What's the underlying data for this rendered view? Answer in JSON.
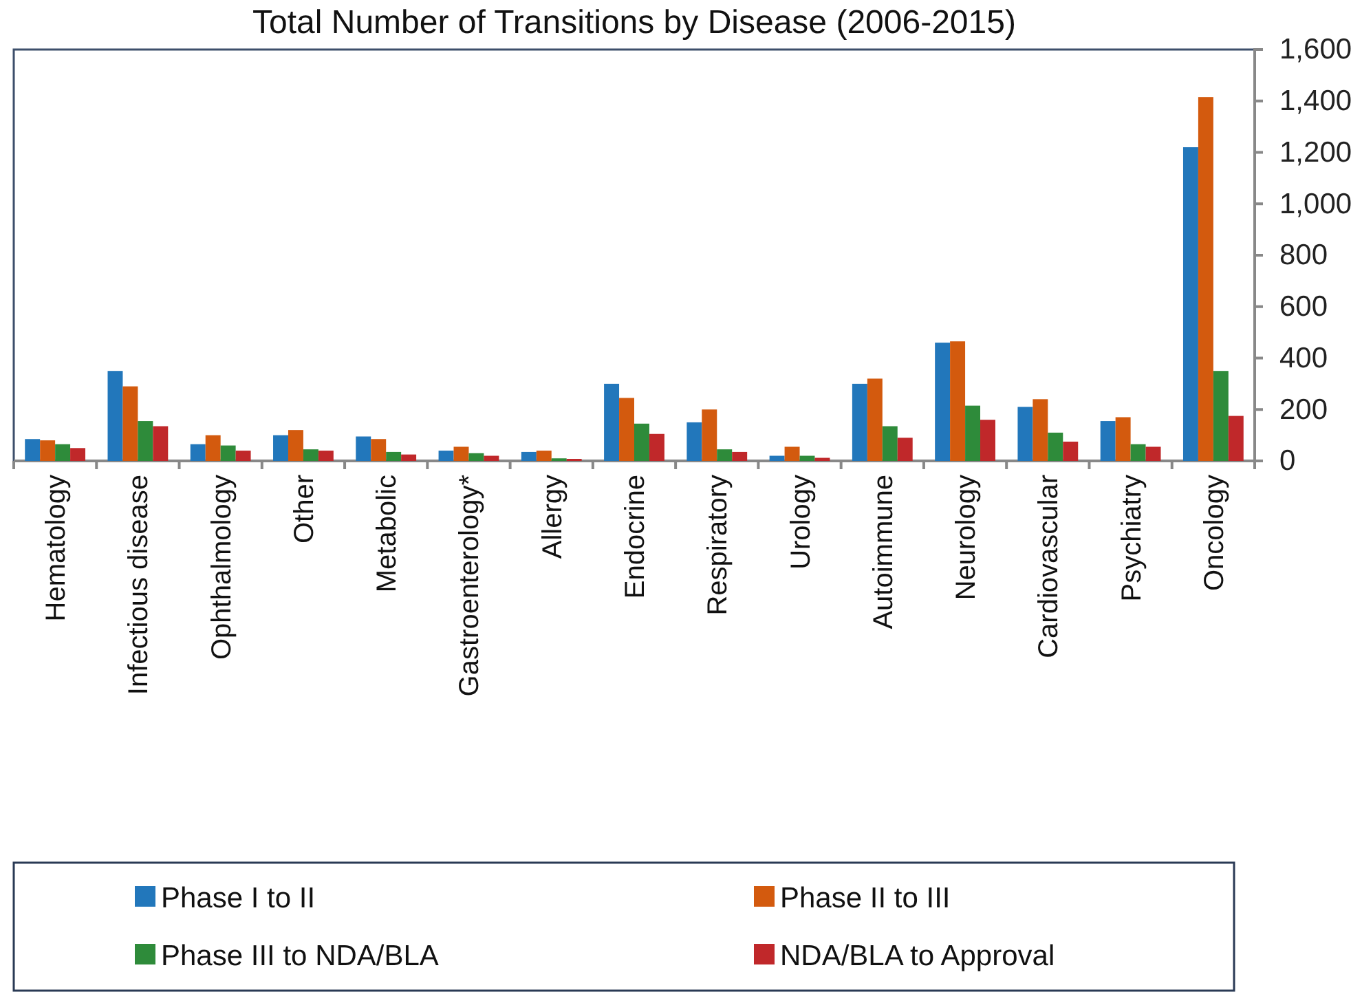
{
  "chart_data": {
    "type": "bar",
    "title": "Total Number of Transitions by Disease (2006-2015)",
    "categories": [
      "Hematology",
      "Infectious disease",
      "Ophthalmology",
      "Other",
      "Metabolic",
      "Gastroenterology*",
      "Allergy",
      "Endocrine",
      "Respiratory",
      "Urology",
      "Autoimmune",
      "Neurology",
      "Cardiovascular",
      "Psychiatry",
      "Oncology"
    ],
    "series": [
      {
        "name": "Phase I to II",
        "color": "#2277bb",
        "values": [
          85,
          350,
          65,
          100,
          95,
          40,
          35,
          300,
          150,
          20,
          300,
          460,
          210,
          155,
          1220
        ]
      },
      {
        "name": "Phase II to III",
        "color": "#d35a0e",
        "values": [
          80,
          290,
          100,
          120,
          85,
          55,
          40,
          245,
          200,
          55,
          320,
          465,
          240,
          170,
          1415
        ]
      },
      {
        "name": "Phase III to NDA/BLA",
        "color": "#2e8b3a",
        "values": [
          65,
          155,
          60,
          45,
          35,
          30,
          10,
          145,
          45,
          20,
          135,
          215,
          110,
          65,
          350
        ]
      },
      {
        "name": "NDA/BLA to Approval",
        "color": "#c0282a",
        "values": [
          50,
          135,
          40,
          40,
          25,
          20,
          8,
          105,
          35,
          12,
          90,
          160,
          75,
          55,
          175
        ]
      }
    ],
    "ylim": [
      0,
      1600
    ],
    "yticks": [
      0,
      {
        "value": 200,
        "label": "200"
      },
      {
        "value": 400,
        "label": "400"
      },
      {
        "value": 600,
        "label": "600"
      },
      {
        "value": 800,
        "label": "800"
      },
      {
        "value": 1000,
        "label": "1,000"
      },
      {
        "value": 1200,
        "label": "1,200"
      },
      {
        "value": 1400,
        "label": "1,400"
      },
      {
        "value": 1600,
        "label": "1,600"
      }
    ],
    "grid": false,
    "legend": "bottom"
  }
}
